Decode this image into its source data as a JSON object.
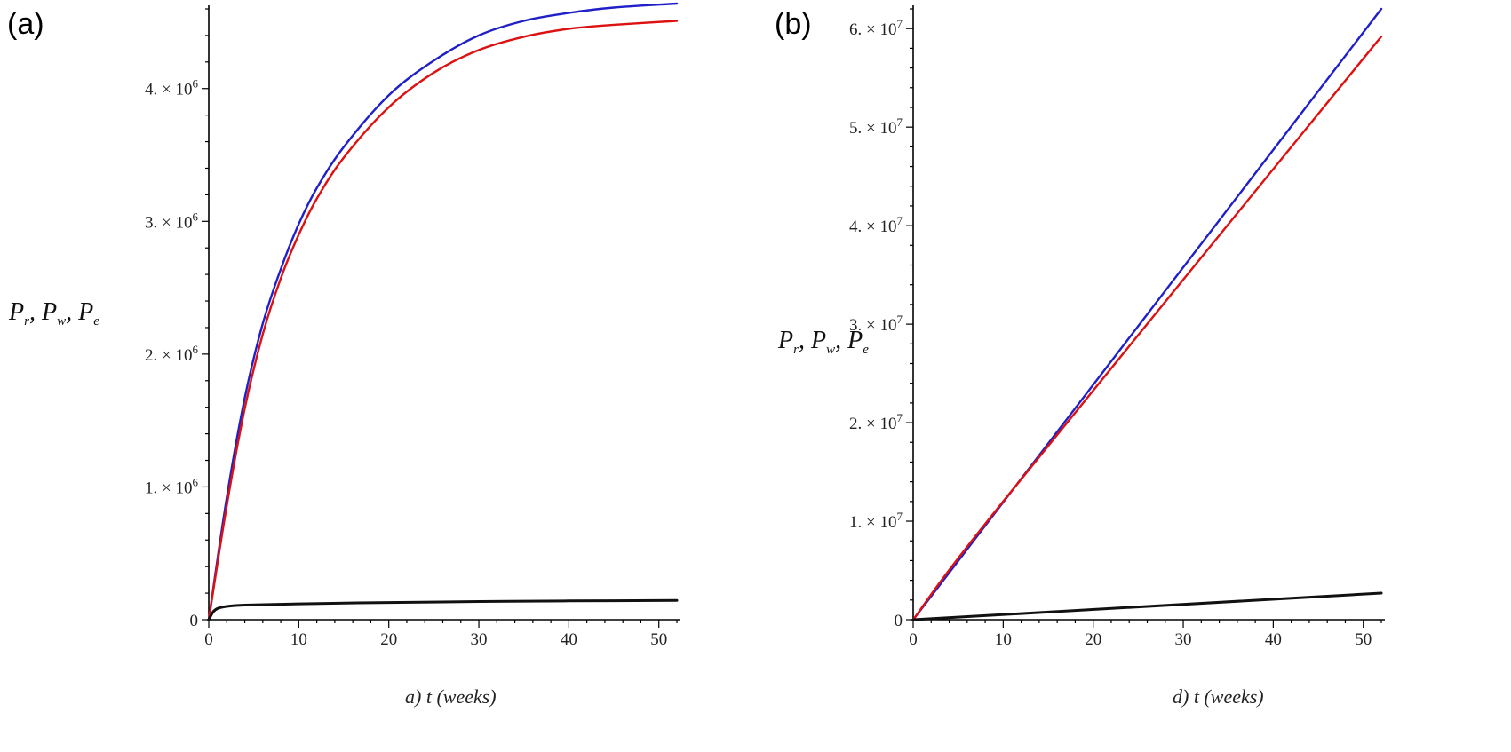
{
  "chart_data": [
    {
      "panel_label": "(a)",
      "type": "line",
      "xlabel_prefix": "a)",
      "xlabel": "t (weeks)",
      "ylabel": "Pr, Pw, Pe",
      "xlim": [
        0,
        52
      ],
      "ylim": [
        0,
        4600000
      ],
      "x_ticks": [
        "0",
        "10",
        "20",
        "30",
        "40",
        "50"
      ],
      "y_ticks": [
        {
          "value": 0,
          "label": "0"
        },
        {
          "value": 1000000,
          "label": "1. × 10^6"
        },
        {
          "value": 2000000,
          "label": "2. × 10^6"
        },
        {
          "value": 3000000,
          "label": "3. × 10^6"
        },
        {
          "value": 4000000,
          "label": "4. × 10^6"
        }
      ],
      "series": [
        {
          "color": "#2020c8",
          "x": [
            0,
            2,
            4,
            6,
            8,
            10,
            12,
            15,
            20,
            25,
            30,
            35,
            40,
            45,
            52
          ],
          "y": [
            0,
            920000,
            1670000,
            2230000,
            2640000,
            2980000,
            3250000,
            3560000,
            3950000,
            4210000,
            4400000,
            4510000,
            4570000,
            4610000,
            4640000
          ]
        },
        {
          "color": "#dd1111",
          "x": [
            0,
            2,
            4,
            6,
            8,
            10,
            12,
            15,
            20,
            25,
            30,
            35,
            40,
            45,
            52
          ],
          "y": [
            0,
            860000,
            1590000,
            2150000,
            2570000,
            2900000,
            3170000,
            3480000,
            3860000,
            4120000,
            4290000,
            4390000,
            4450000,
            4480000,
            4510000
          ]
        },
        {
          "color": "#111111",
          "x": [
            0,
            0.5,
            1,
            2,
            4,
            10,
            20,
            30,
            40,
            52
          ],
          "y": [
            0,
            60000,
            85000,
            100000,
            110000,
            120000,
            130000,
            137000,
            142000,
            145000
          ]
        }
      ]
    },
    {
      "panel_label": "(b)",
      "type": "line",
      "xlabel_prefix": "d)",
      "xlabel": "t (weeks)",
      "ylabel": "Pr, Pw, Pe",
      "xlim": [
        0,
        52
      ],
      "ylim": [
        0,
        62000000
      ],
      "x_ticks": [
        "0",
        "10",
        "20",
        "30",
        "40",
        "50"
      ],
      "y_ticks": [
        {
          "value": 0,
          "label": "0"
        },
        {
          "value": 10000000,
          "label": "1. × 10^7"
        },
        {
          "value": 20000000,
          "label": "2. × 10^7"
        },
        {
          "value": 30000000,
          "label": "3. × 10^7"
        },
        {
          "value": 40000000,
          "label": "4. × 10^7"
        },
        {
          "value": 50000000,
          "label": "5. × 10^7"
        },
        {
          "value": 60000000,
          "label": "6. × 10^7"
        }
      ],
      "series": [
        {
          "color": "#2020c8",
          "x": [
            0,
            52
          ],
          "y": [
            0,
            62000000
          ]
        },
        {
          "color": "#dd1111",
          "x": [
            0,
            10,
            52
          ],
          "y": [
            0,
            12000000,
            59200000
          ]
        },
        {
          "color": "#111111",
          "x": [
            0,
            52
          ],
          "y": [
            0,
            2700000
          ]
        }
      ]
    }
  ]
}
